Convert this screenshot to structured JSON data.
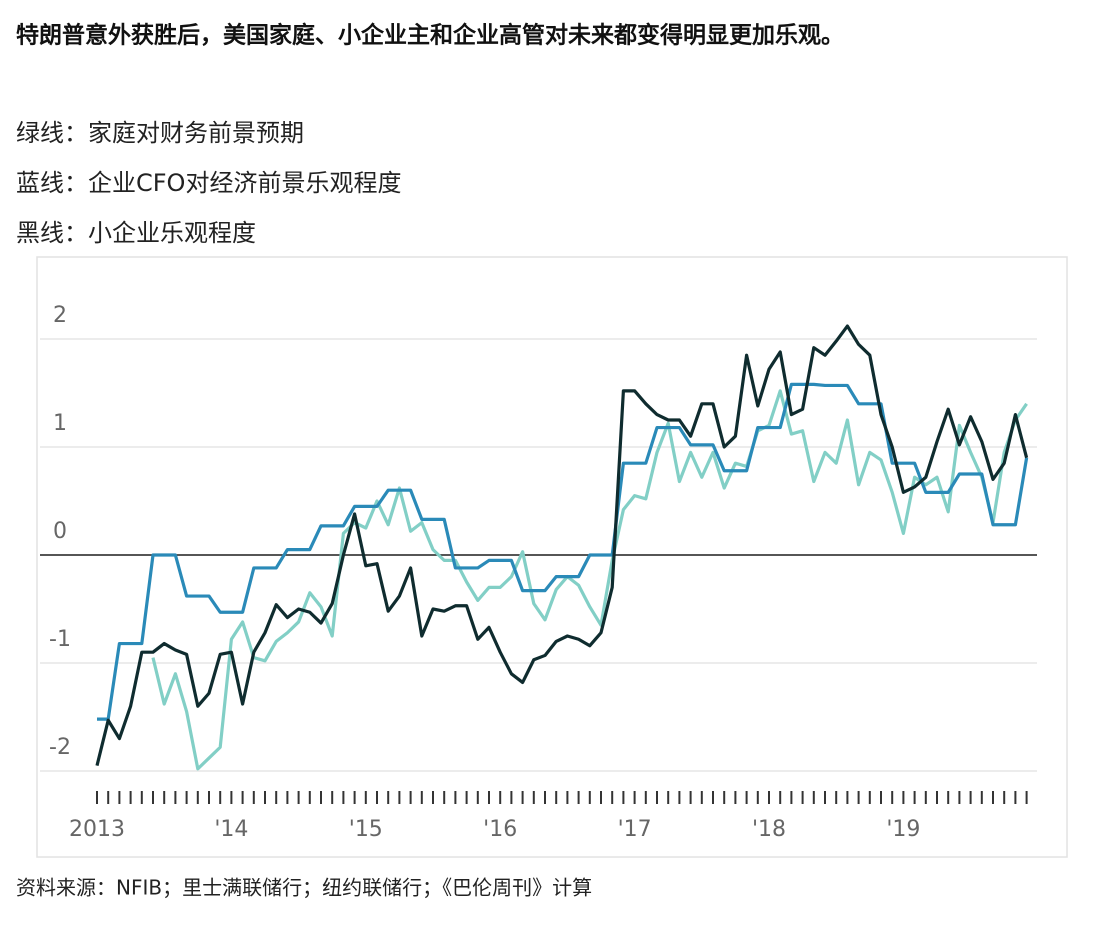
{
  "chart_data": {
    "type": "line",
    "title": "特朗普意外获胜后，美国家庭、小企业主和企业高管对未来都变得明显更加乐观。",
    "source": "资料来源：NFIB；里士满联储行；纽约联储行；《巴伦周刊》计算",
    "categories": [
      "2013",
      null,
      null,
      null,
      null,
      null,
      null,
      null,
      null,
      null,
      null,
      null,
      "'14",
      null,
      null,
      null,
      null,
      null,
      null,
      null,
      null,
      null,
      null,
      null,
      "'15",
      null,
      null,
      null,
      null,
      null,
      null,
      null,
      null,
      null,
      null,
      null,
      "'16",
      null,
      null,
      null,
      null,
      null,
      null,
      null,
      null,
      null,
      null,
      null,
      "'17",
      null,
      null,
      null,
      null,
      null,
      null,
      null,
      null,
      null,
      null,
      null,
      "'18",
      null,
      null,
      null,
      null,
      null,
      null,
      null,
      null,
      null,
      null,
      null,
      "'19",
      null,
      null,
      null,
      null,
      null,
      null,
      null,
      null,
      null,
      null,
      null
    ],
    "ylim": [
      -2.15,
      2.4
    ],
    "yticks": [
      2,
      1,
      0,
      -1,
      -2
    ],
    "grid": true,
    "zero_line": true,
    "series": [
      {
        "name": "绿线：家庭对财务前景预期",
        "color": "#82cfc6",
        "values": [
          null,
          null,
          null,
          null,
          null,
          -0.95,
          -1.38,
          -1.1,
          -1.45,
          -1.98,
          -1.88,
          -1.78,
          -0.78,
          -0.62,
          -0.95,
          -0.98,
          -0.8,
          -0.72,
          -0.62,
          -0.35,
          -0.48,
          -0.75,
          0.2,
          0.3,
          0.25,
          0.5,
          0.28,
          0.62,
          0.22,
          0.3,
          0.05,
          -0.05,
          -0.05,
          -0.25,
          -0.42,
          -0.3,
          -0.3,
          -0.2,
          0.03,
          -0.45,
          -0.6,
          -0.32,
          -0.2,
          -0.28,
          -0.48,
          -0.65,
          -0.05,
          0.42,
          0.55,
          0.52,
          0.95,
          1.22,
          0.68,
          0.95,
          0.72,
          0.95,
          0.62,
          0.85,
          0.82,
          1.15,
          1.2,
          1.52,
          1.12,
          1.15,
          0.68,
          0.95,
          0.85,
          1.25,
          0.65,
          0.95,
          0.88,
          0.58,
          0.2,
          0.72,
          0.65,
          0.72,
          0.4,
          1.2,
          0.95,
          0.72,
          0.3,
          0.95,
          1.25,
          1.4
        ]
      },
      {
        "name": "蓝线：企业CFO对经济前景乐观程度",
        "color": "#2a8ab8",
        "values": [
          -1.52,
          -1.52,
          -0.82,
          -0.82,
          -0.82,
          0,
          0,
          0,
          -0.38,
          -0.38,
          -0.38,
          -0.53,
          -0.53,
          -0.53,
          -0.12,
          -0.12,
          -0.12,
          0.05,
          0.05,
          0.05,
          0.27,
          0.27,
          0.27,
          0.45,
          0.45,
          0.45,
          0.6,
          0.6,
          0.6,
          0.33,
          0.33,
          0.33,
          -0.12,
          -0.12,
          -0.12,
          -0.05,
          -0.05,
          -0.05,
          -0.33,
          -0.33,
          -0.33,
          -0.2,
          -0.2,
          -0.2,
          0,
          0,
          0,
          0.85,
          0.85,
          0.85,
          1.18,
          1.18,
          1.18,
          1.02,
          1.02,
          1.02,
          0.78,
          0.78,
          0.78,
          1.18,
          1.18,
          1.18,
          1.58,
          1.58,
          1.58,
          1.57,
          1.57,
          1.57,
          1.4,
          1.4,
          1.4,
          0.85,
          0.85,
          0.85,
          0.58,
          0.58,
          0.58,
          0.75,
          0.75,
          0.75,
          0.28,
          0.28,
          0.28,
          0.9
        ]
      },
      {
        "name": "黑线：小企业乐观程度",
        "color": "#0f2c2f",
        "values": [
          -1.95,
          -1.53,
          -1.7,
          -1.4,
          -0.9,
          -0.9,
          -0.82,
          -0.88,
          -0.92,
          -1.4,
          -1.28,
          -0.92,
          -0.9,
          -1.38,
          -0.9,
          -0.72,
          -0.46,
          -0.58,
          -0.5,
          -0.53,
          -0.63,
          -0.45,
          0,
          0.38,
          -0.1,
          -0.08,
          -0.52,
          -0.38,
          -0.12,
          -0.75,
          -0.5,
          -0.52,
          -0.47,
          -0.47,
          -0.78,
          -0.67,
          -0.9,
          -1.1,
          -1.18,
          -0.97,
          -0.93,
          -0.8,
          -0.75,
          -0.78,
          -0.84,
          -0.72,
          -0.3,
          1.52,
          1.52,
          1.4,
          1.3,
          1.25,
          1.25,
          1.1,
          1.4,
          1.4,
          1,
          1.1,
          1.85,
          1.38,
          1.72,
          1.88,
          1.3,
          1.35,
          1.92,
          1.85,
          1.98,
          2.12,
          1.95,
          1.85,
          1.3,
          1,
          0.58,
          0.63,
          0.72,
          1.05,
          1.35,
          1.02,
          1.28,
          1.05,
          0.7,
          0.85,
          1.3,
          0.9
        ]
      }
    ]
  }
}
